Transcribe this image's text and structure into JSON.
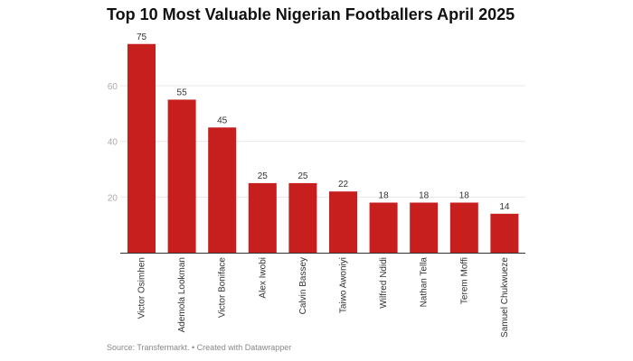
{
  "chart_data": {
    "type": "bar",
    "title": "Top 10 Most Valuable Nigerian Footballers April 2025",
    "categories": [
      "Victor Osimhen",
      "Ademola Lookman",
      "Victor Boniface",
      "Alex Iwobi",
      "Calvin Bassey",
      "Taiwo Awoniyi",
      "Wilfred Ndidi",
      "Nathan Tella",
      "Terem Moffi",
      "Samuel Chukwueze"
    ],
    "values": [
      75,
      55,
      45,
      25,
      25,
      22,
      18,
      18,
      18,
      14
    ],
    "yticks": [
      20,
      40,
      60
    ],
    "ylim": [
      0,
      75
    ],
    "grid": true,
    "bar_color": "#c71e1e",
    "source": "Source: Transfermarkt. • Created with Datawrapper"
  }
}
